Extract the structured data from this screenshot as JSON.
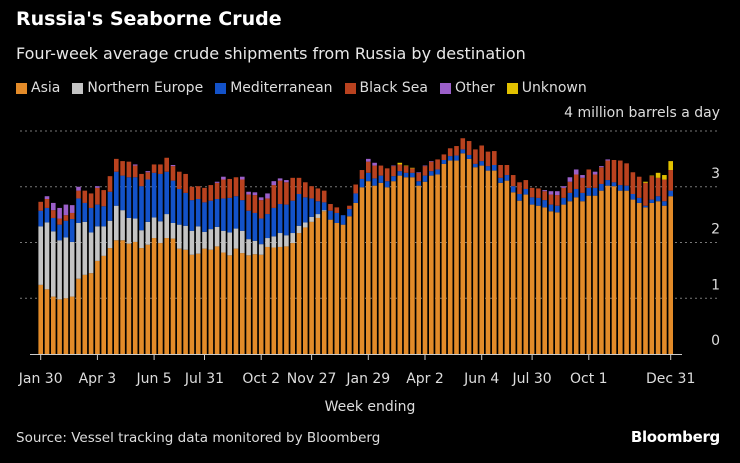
{
  "title": "Russia's Seaborne Crude",
  "subtitle": "Four-week average crude shipments from Russia by destination",
  "source": "Source: Vessel tracking data monitored by Bloomberg",
  "brand": "Bloomberg",
  "chart_data": {
    "type": "bar",
    "stacked": true,
    "title": "Russia's Seaborne Crude",
    "ylabel": "4 million barrels a day",
    "xlabel": "Week ending",
    "ylim": [
      0,
      4
    ],
    "yticks": [
      "0",
      "1",
      "2",
      "3"
    ],
    "xtick_labels": [
      {
        "index": 0,
        "label": "Jan 30"
      },
      {
        "index": 9,
        "label": "Apr 3"
      },
      {
        "index": 18,
        "label": "Jun 5"
      },
      {
        "index": 26,
        "label": "Jul 31"
      },
      {
        "index": 35,
        "label": "Oct 2"
      },
      {
        "index": 43,
        "label": "Nov 27"
      },
      {
        "index": 52,
        "label": "Jan 29"
      },
      {
        "index": 61,
        "label": "Apr 2"
      },
      {
        "index": 70,
        "label": "Jun 4"
      },
      {
        "index": 78,
        "label": "Jul 30"
      },
      {
        "index": 87,
        "label": "Oct 1"
      },
      {
        "index": 100,
        "label": "Dec 31"
      }
    ],
    "grid": true,
    "legend_position": "top-left",
    "series": [
      {
        "name": "Asia",
        "color": "#e38b29",
        "values": [
          1.24,
          1.16,
          1.03,
          0.98,
          1.0,
          1.03,
          1.35,
          1.42,
          1.45,
          1.67,
          1.76,
          1.9,
          2.04,
          2.04,
          1.98,
          2.01,
          1.9,
          1.96,
          2.08,
          1.99,
          2.08,
          2.07,
          1.89,
          1.87,
          1.78,
          1.8,
          1.89,
          1.87,
          1.93,
          1.82,
          1.77,
          1.89,
          1.81,
          1.77,
          1.79,
          1.78,
          1.92,
          1.91,
          1.92,
          1.93,
          1.99,
          2.17,
          2.27,
          2.37,
          2.44,
          2.56,
          2.41,
          2.35,
          2.32,
          2.47,
          2.71,
          2.99,
          3.1,
          3.02,
          3.07,
          2.99,
          3.1,
          3.2,
          3.17,
          3.17,
          3.02,
          3.09,
          3.2,
          3.22,
          3.41,
          3.47,
          3.47,
          3.6,
          3.5,
          3.35,
          3.38,
          3.29,
          3.29,
          3.07,
          3.11,
          2.9,
          2.75,
          2.86,
          2.68,
          2.66,
          2.63,
          2.56,
          2.54,
          2.68,
          2.74,
          2.81,
          2.74,
          2.84,
          2.84,
          2.93,
          3.02,
          3.01,
          2.93,
          2.93,
          2.77,
          2.71,
          2.63,
          2.71,
          2.74,
          2.66,
          2.83
        ]
      },
      {
        "name": "Northern Europe",
        "color": "#c4c4c4",
        "values": [
          1.05,
          1.2,
          1.17,
          1.06,
          1.09,
          0.98,
          1.0,
          0.95,
          0.73,
          0.62,
          0.53,
          0.49,
          0.62,
          0.54,
          0.46,
          0.42,
          0.32,
          0.41,
          0.37,
          0.39,
          0.43,
          0.28,
          0.43,
          0.43,
          0.43,
          0.49,
          0.3,
          0.37,
          0.35,
          0.39,
          0.41,
          0.36,
          0.4,
          0.29,
          0.24,
          0.19,
          0.16,
          0.2,
          0.25,
          0.2,
          0.18,
          0.13,
          0.09,
          0.09,
          0.07,
          0.02,
          0,
          0,
          0,
          0,
          0,
          0,
          0,
          0,
          0,
          0,
          0,
          0,
          0,
          0,
          0,
          0,
          0,
          0,
          0,
          0,
          0,
          0,
          0,
          0,
          0,
          0,
          0,
          0,
          0,
          0,
          0,
          0,
          0,
          0,
          0,
          0,
          0,
          0,
          0,
          0,
          0,
          0,
          0,
          0,
          0,
          0,
          0,
          0,
          0,
          0,
          0,
          0,
          0,
          0,
          0
        ]
      },
      {
        "name": "Mediterranean",
        "color": "#1352c9",
        "values": [
          0.28,
          0.26,
          0.24,
          0.28,
          0.3,
          0.41,
          0.44,
          0.34,
          0.44,
          0.39,
          0.36,
          0.52,
          0.61,
          0.62,
          0.73,
          0.74,
          0.79,
          0.76,
          0.8,
          0.85,
          0.76,
          0.76,
          0.64,
          0.59,
          0.55,
          0.49,
          0.53,
          0.51,
          0.5,
          0.58,
          0.62,
          0.58,
          0.55,
          0.51,
          0.5,
          0.46,
          0.43,
          0.51,
          0.52,
          0.55,
          0.58,
          0.57,
          0.45,
          0.33,
          0.23,
          0.14,
          0.16,
          0.18,
          0.17,
          0.13,
          0.17,
          0.15,
          0.15,
          0.13,
          0.13,
          0.11,
          0.09,
          0.08,
          0.08,
          0.08,
          0.08,
          0.11,
          0.08,
          0.09,
          0.07,
          0.08,
          0.09,
          0.07,
          0.07,
          0.06,
          0.08,
          0.08,
          0.1,
          0.09,
          0.1,
          0.11,
          0.12,
          0.1,
          0.13,
          0.14,
          0.13,
          0.12,
          0.12,
          0.12,
          0.15,
          0.15,
          0.15,
          0.14,
          0.14,
          0.12,
          0.1,
          0.07,
          0.1,
          0.09,
          0.1,
          0.09,
          0.03,
          0.06,
          0.09,
          0.08,
          0.1
        ]
      },
      {
        "name": "Black Sea",
        "color": "#b9421f",
        "values": [
          0.16,
          0.16,
          0.14,
          0.11,
          0.1,
          0.11,
          0.14,
          0.22,
          0.26,
          0.3,
          0.29,
          0.28,
          0.23,
          0.26,
          0.28,
          0.21,
          0.22,
          0.13,
          0.15,
          0.17,
          0.25,
          0.26,
          0.31,
          0.34,
          0.24,
          0.23,
          0.26,
          0.28,
          0.29,
          0.34,
          0.34,
          0.34,
          0.37,
          0.29,
          0.32,
          0.33,
          0.28,
          0.41,
          0.42,
          0.4,
          0.41,
          0.29,
          0.27,
          0.22,
          0.23,
          0.21,
          0.12,
          0.1,
          0,
          0.06,
          0.16,
          0.16,
          0.2,
          0.23,
          0.18,
          0.23,
          0.18,
          0.12,
          0.12,
          0.08,
          0.15,
          0.17,
          0.17,
          0.18,
          0.1,
          0.14,
          0.17,
          0.2,
          0.25,
          0.26,
          0.28,
          0.26,
          0.25,
          0.23,
          0.18,
          0.2,
          0.21,
          0.16,
          0.17,
          0.17,
          0.16,
          0.18,
          0.19,
          0.18,
          0.2,
          0.26,
          0.27,
          0.33,
          0.24,
          0.3,
          0.35,
          0.4,
          0.44,
          0.4,
          0.39,
          0.38,
          0.41,
          0.42,
          0.33,
          0.39,
          0.37
        ]
      },
      {
        "name": "Other",
        "color": "#9b5fc9",
        "values": [
          0,
          0.05,
          0.13,
          0.19,
          0.19,
          0.14,
          0.07,
          0,
          0,
          0.03,
          0,
          0,
          0,
          0,
          0,
          0.02,
          0,
          0.02,
          0,
          0,
          0,
          0.02,
          0,
          0,
          0,
          0,
          0,
          0,
          0.02,
          0.05,
          0,
          0,
          0.05,
          0.05,
          0.05,
          0.05,
          0.09,
          0.07,
          0.04,
          0.04,
          0,
          0,
          0,
          0,
          0,
          0,
          0,
          0,
          0,
          0,
          0,
          0,
          0.05,
          0.05,
          0,
          0,
          0.01,
          0,
          0,
          0,
          0.01,
          0.01,
          0.01,
          0,
          0,
          0,
          0,
          0,
          0,
          0,
          0,
          0,
          0,
          0,
          0,
          0,
          0,
          0,
          0,
          0,
          0.02,
          0.06,
          0.07,
          0.03,
          0.08,
          0.09,
          0.05,
          0,
          0.05,
          0.02,
          0.02,
          0,
          0,
          0,
          0,
          0,
          0,
          0,
          0,
          0,
          0
        ]
      },
      {
        "name": "Unknown",
        "color": "#e2c100",
        "values": [
          0,
          0,
          0,
          0,
          0,
          0,
          0,
          0,
          0,
          0,
          0,
          0,
          0,
          0,
          0,
          0,
          0,
          0,
          0,
          0,
          0,
          0,
          0,
          0,
          0,
          0,
          0,
          0,
          0,
          0,
          0,
          0,
          0,
          0,
          0,
          0,
          0,
          0,
          0,
          0,
          0,
          0,
          0,
          0,
          0,
          0,
          0,
          0,
          0,
          0,
          0,
          0,
          0,
          0,
          0,
          0,
          0,
          0.03,
          0.01,
          0.01,
          0,
          0,
          0,
          0,
          0,
          0,
          0,
          0,
          0,
          0,
          0,
          0,
          0,
          0,
          0,
          0,
          0,
          0,
          0,
          0,
          0,
          0,
          0,
          0,
          0,
          0,
          0,
          0,
          0,
          0,
          0,
          0,
          0,
          0,
          0,
          0,
          0.02,
          0.01,
          0.09,
          0.08,
          0.16
        ]
      }
    ]
  }
}
